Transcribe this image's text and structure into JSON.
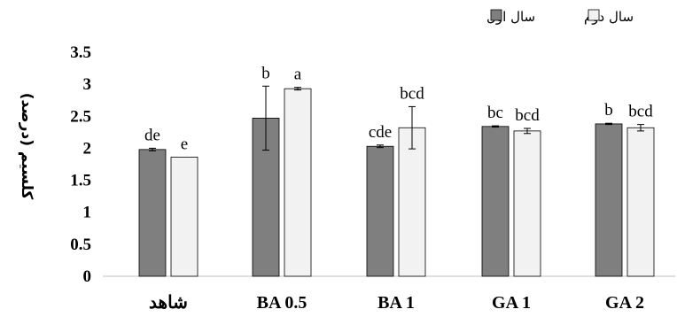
{
  "chart_data": {
    "type": "bar",
    "ylabel": "کلسیم (درصد)",
    "ylim": [
      0,
      3.5
    ],
    "yticks": [
      "0",
      "0.5",
      "1",
      "1.5",
      "2",
      "2.5",
      "3",
      "3.5"
    ],
    "categories": [
      "شاهد",
      "BA 0.5",
      "BA 1",
      "GA 1",
      "GA 2"
    ],
    "series": [
      {
        "name": "سال اول",
        "color": "#7f7f7f",
        "values": [
          1.98,
          2.47,
          2.03,
          2.34,
          2.38
        ],
        "errors": [
          0.02,
          0.5,
          0.02,
          0.01,
          0.01
        ],
        "labels": [
          "de",
          "b",
          "cde",
          "bc",
          "b"
        ]
      },
      {
        "name": "سال دوم",
        "color": "#f2f2f2",
        "values": [
          1.86,
          2.93,
          2.32,
          2.27,
          2.32
        ],
        "errors": [
          0.0,
          0.02,
          0.33,
          0.04,
          0.05
        ],
        "labels": [
          "e",
          "a",
          "bcd",
          "bcd",
          "bcd"
        ]
      }
    ],
    "grid": false,
    "legend_position": "top-right"
  }
}
